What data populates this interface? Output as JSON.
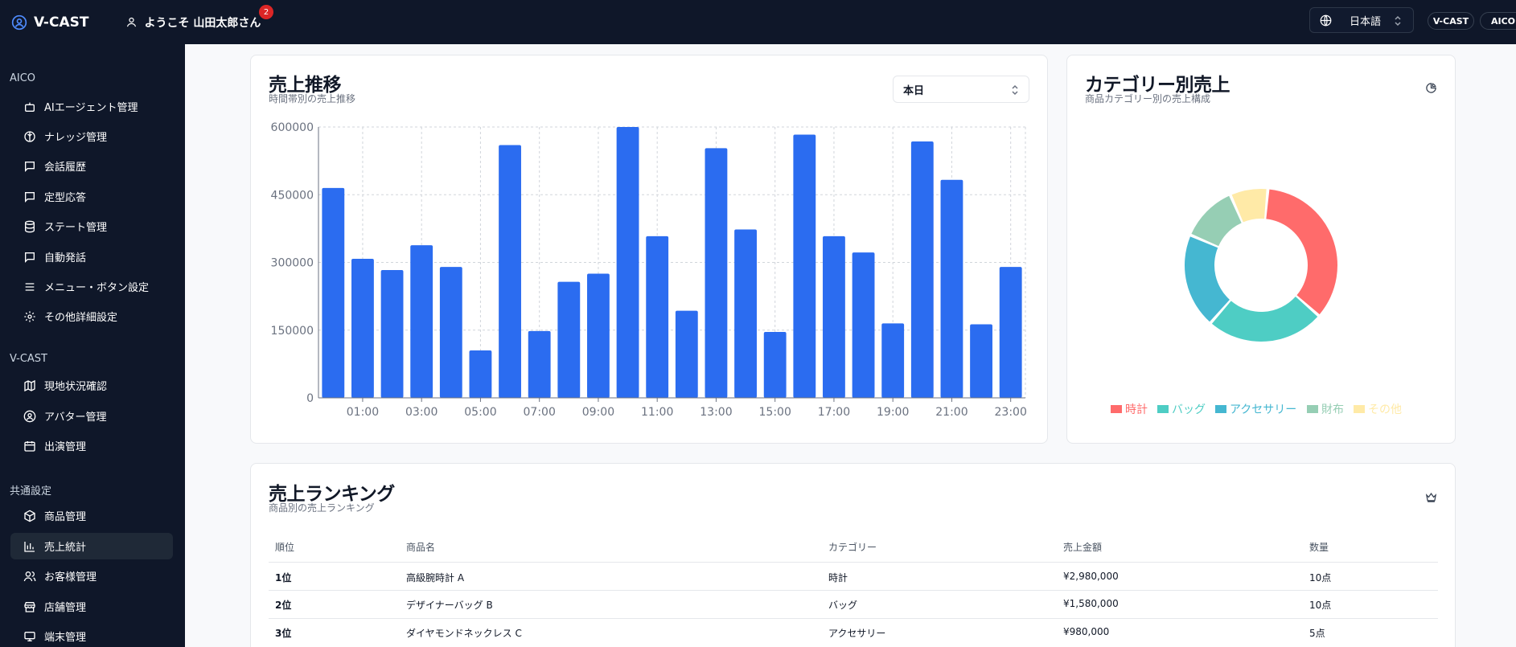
{
  "header": {
    "logo_text": "V-CAST",
    "welcome_text": "ようこそ 山田太郎さん",
    "notification_count": "2",
    "language": "日本語",
    "pills": [
      "V-CAST",
      "AICO"
    ]
  },
  "sidebar": {
    "sections": [
      {
        "title": "AICO",
        "items": [
          {
            "label": "AIエージェント管理",
            "icon": "bot-icon"
          },
          {
            "label": "ナレッジ管理",
            "icon": "brain-icon"
          },
          {
            "label": "会話履歴",
            "icon": "message-icon"
          },
          {
            "label": "定型応答",
            "icon": "message-dots-icon"
          },
          {
            "label": "ステート管理",
            "icon": "database-icon"
          },
          {
            "label": "自動発話",
            "icon": "message-dots-icon"
          },
          {
            "label": "メニュー・ボタン設定",
            "icon": "menu-icon"
          },
          {
            "label": "その他詳細設定",
            "icon": "gear-icon"
          }
        ]
      },
      {
        "title": "V-CAST",
        "items": [
          {
            "label": "現地状況確認",
            "icon": "map-icon"
          },
          {
            "label": "アバター管理",
            "icon": "user-circle-icon"
          },
          {
            "label": "出演管理",
            "icon": "calendar-icon"
          }
        ]
      },
      {
        "title": "共通設定",
        "items": [
          {
            "label": "商品管理",
            "icon": "package-icon"
          },
          {
            "label": "売上統計",
            "icon": "bar-chart-icon",
            "active": true
          },
          {
            "label": "お客様管理",
            "icon": "users-icon"
          },
          {
            "label": "店舗管理",
            "icon": "store-icon"
          },
          {
            "label": "端末管理",
            "icon": "monitor-icon"
          }
        ]
      }
    ]
  },
  "sales_trend": {
    "title": "売上推移",
    "subtitle": "時間帯別の売上推移",
    "period": "本日"
  },
  "category_sales": {
    "title": "カテゴリー別売上",
    "subtitle": "商品カテゴリー別の売上構成"
  },
  "ranking": {
    "title": "売上ランキング",
    "subtitle": "商品別の売上ランキング",
    "columns": [
      "順位",
      "商品名",
      "カテゴリー",
      "売上金額",
      "数量"
    ],
    "rows": [
      [
        "1位",
        "高級腕時計 A",
        "時計",
        "¥2,980,000",
        "10点"
      ],
      [
        "2位",
        "デザイナーバッグ B",
        "バッグ",
        "¥1,580,000",
        "10点"
      ],
      [
        "3位",
        "ダイヤモンドネックレス C",
        "アクセサリー",
        "¥980,000",
        "5点"
      ]
    ]
  },
  "chart_data": [
    {
      "type": "bar",
      "categories": [
        "00:00",
        "01:00",
        "02:00",
        "03:00",
        "04:00",
        "05:00",
        "06:00",
        "07:00",
        "08:00",
        "09:00",
        "10:00",
        "11:00",
        "12:00",
        "13:00",
        "14:00",
        "15:00",
        "16:00",
        "17:00",
        "18:00",
        "19:00",
        "20:00",
        "21:00",
        "22:00",
        "23:00"
      ],
      "tick_labels": [
        "01:00",
        "03:00",
        "05:00",
        "07:00",
        "09:00",
        "11:00",
        "13:00",
        "15:00",
        "17:00",
        "19:00",
        "21:00",
        "23:00"
      ],
      "values": [
        465000,
        308000,
        283000,
        338000,
        290000,
        105000,
        560000,
        148000,
        257000,
        275000,
        600000,
        358000,
        193000,
        553000,
        373000,
        146000,
        583000,
        358000,
        322000,
        165000,
        568000,
        483000,
        163000,
        290000
      ],
      "y_ticks": [
        "0",
        "150000",
        "300000",
        "450000",
        "600000"
      ],
      "ylim": [
        0,
        600000
      ],
      "grid": true,
      "color": "#2b6cf0"
    },
    {
      "type": "pie",
      "donut": true,
      "labels": [
        "時計",
        "バッグ",
        "アクセサリー",
        "財布",
        "その他"
      ],
      "values": [
        35,
        25,
        20,
        12,
        8
      ],
      "colors": [
        "#ff6b6b",
        "#4ecdc4",
        "#45b7d1",
        "#96ceb4",
        "#ffeaa7"
      ],
      "legend": "bottom"
    }
  ]
}
